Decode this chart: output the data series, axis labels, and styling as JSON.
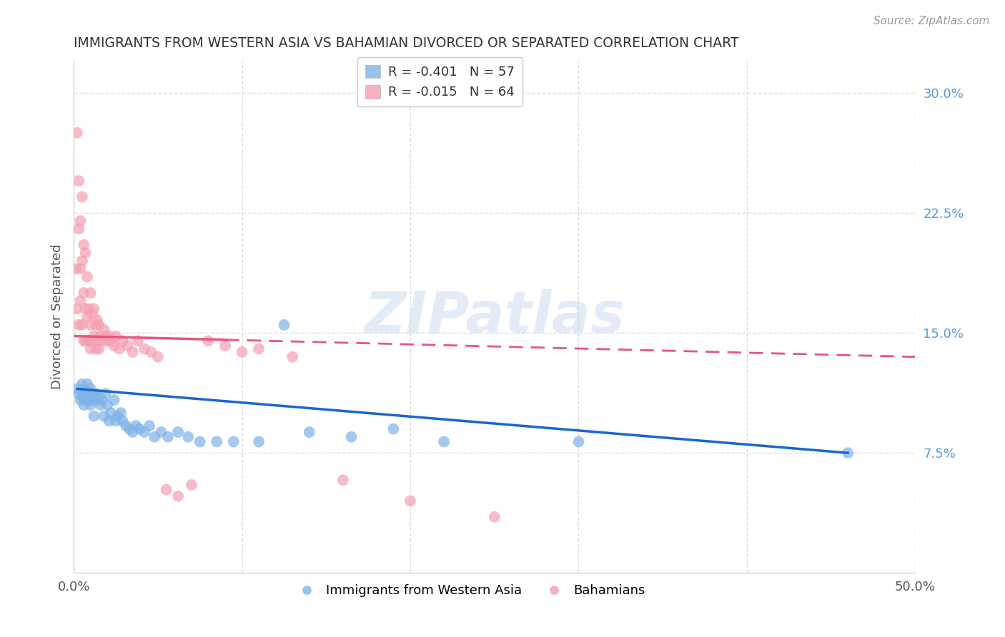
{
  "title": "IMMIGRANTS FROM WESTERN ASIA VS BAHAMIAN DIVORCED OR SEPARATED CORRELATION CHART",
  "source": "Source: ZipAtlas.com",
  "ylabel": "Divorced or Separated",
  "xlim": [
    0.0,
    0.5
  ],
  "ylim": [
    0.0,
    0.32
  ],
  "xtick_positions": [
    0.0,
    0.1,
    0.2,
    0.3,
    0.4,
    0.5
  ],
  "xticklabels": [
    "0.0%",
    "",
    "",
    "",
    "",
    "50.0%"
  ],
  "yticks_right": [
    0.075,
    0.15,
    0.225,
    0.3
  ],
  "ytick_labels_right": [
    "7.5%",
    "15.0%",
    "22.5%",
    "30.0%"
  ],
  "grid_color": "#dddddd",
  "background_color": "#ffffff",
  "legend_R_blue": "-0.401",
  "legend_N_blue": "57",
  "legend_R_pink": "-0.015",
  "legend_N_pink": "64",
  "blue_color": "#7fb3e8",
  "pink_color": "#f4a0b0",
  "trendline_blue_color": "#1a66cc",
  "trendline_pink_color": "#e8557a",
  "watermark_text": "ZIPatlas",
  "blue_scatter_x": [
    0.002,
    0.003,
    0.004,
    0.005,
    0.005,
    0.006,
    0.006,
    0.007,
    0.007,
    0.008,
    0.008,
    0.009,
    0.009,
    0.01,
    0.01,
    0.011,
    0.011,
    0.012,
    0.012,
    0.013,
    0.014,
    0.015,
    0.016,
    0.017,
    0.018,
    0.019,
    0.02,
    0.021,
    0.022,
    0.024,
    0.025,
    0.026,
    0.028,
    0.029,
    0.031,
    0.033,
    0.035,
    0.037,
    0.039,
    0.042,
    0.045,
    0.048,
    0.052,
    0.056,
    0.062,
    0.068,
    0.075,
    0.085,
    0.095,
    0.11,
    0.125,
    0.14,
    0.165,
    0.19,
    0.22,
    0.3,
    0.46
  ],
  "blue_scatter_y": [
    0.115,
    0.112,
    0.108,
    0.118,
    0.11,
    0.115,
    0.105,
    0.112,
    0.108,
    0.118,
    0.11,
    0.108,
    0.113,
    0.115,
    0.105,
    0.112,
    0.108,
    0.11,
    0.098,
    0.112,
    0.108,
    0.11,
    0.105,
    0.108,
    0.098,
    0.112,
    0.105,
    0.095,
    0.1,
    0.108,
    0.095,
    0.098,
    0.1,
    0.095,
    0.092,
    0.09,
    0.088,
    0.092,
    0.09,
    0.088,
    0.092,
    0.085,
    0.088,
    0.085,
    0.088,
    0.085,
    0.082,
    0.082,
    0.082,
    0.082,
    0.155,
    0.088,
    0.085,
    0.09,
    0.082,
    0.082,
    0.075
  ],
  "pink_scatter_x": [
    0.001,
    0.002,
    0.002,
    0.003,
    0.003,
    0.003,
    0.004,
    0.004,
    0.004,
    0.005,
    0.005,
    0.005,
    0.006,
    0.006,
    0.006,
    0.007,
    0.007,
    0.007,
    0.008,
    0.008,
    0.008,
    0.009,
    0.009,
    0.01,
    0.01,
    0.01,
    0.011,
    0.011,
    0.012,
    0.012,
    0.013,
    0.013,
    0.014,
    0.014,
    0.015,
    0.015,
    0.016,
    0.017,
    0.018,
    0.019,
    0.02,
    0.021,
    0.022,
    0.024,
    0.025,
    0.027,
    0.029,
    0.032,
    0.035,
    0.038,
    0.042,
    0.046,
    0.05,
    0.055,
    0.062,
    0.07,
    0.08,
    0.09,
    0.1,
    0.11,
    0.13,
    0.16,
    0.2,
    0.25
  ],
  "pink_scatter_y": [
    0.19,
    0.275,
    0.165,
    0.215,
    0.245,
    0.155,
    0.22,
    0.19,
    0.17,
    0.235,
    0.195,
    0.155,
    0.205,
    0.175,
    0.145,
    0.2,
    0.165,
    0.145,
    0.185,
    0.16,
    0.145,
    0.165,
    0.145,
    0.175,
    0.155,
    0.14,
    0.162,
    0.145,
    0.165,
    0.148,
    0.155,
    0.14,
    0.158,
    0.145,
    0.155,
    0.14,
    0.148,
    0.145,
    0.152,
    0.148,
    0.145,
    0.148,
    0.145,
    0.142,
    0.148,
    0.14,
    0.145,
    0.142,
    0.138,
    0.145,
    0.14,
    0.138,
    0.135,
    0.052,
    0.048,
    0.055,
    0.145,
    0.142,
    0.138,
    0.14,
    0.135,
    0.058,
    0.045,
    0.035
  ],
  "pink_trendline_x_start": 0.001,
  "pink_trendline_x_solid_end": 0.09,
  "pink_trendline_x_end": 0.5,
  "pink_trendline_y_at_0": 0.148,
  "pink_trendline_y_at_50pct": 0.135,
  "blue_trendline_x_start": 0.002,
  "blue_trendline_x_end": 0.46,
  "blue_trendline_y_at_0": 0.115,
  "blue_trendline_y_at_46pct": 0.075
}
